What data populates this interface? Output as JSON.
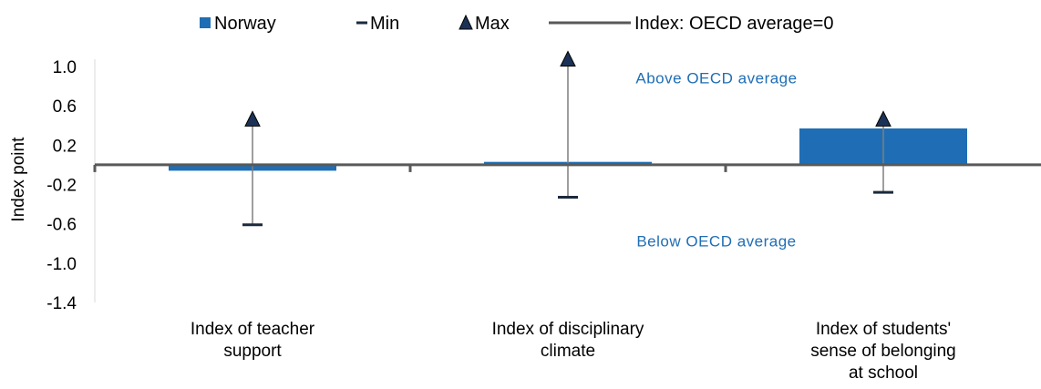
{
  "chart_data": {
    "type": "bar",
    "categories": [
      [
        "Index of teacher",
        "support"
      ],
      [
        "Index of disciplinary",
        "climate"
      ],
      [
        "Index of students'",
        "sense of belonging",
        "at school"
      ]
    ],
    "series": [
      {
        "name": "Norway",
        "type": "bar",
        "values": [
          -0.06,
          0.03,
          0.37
        ],
        "color": "#1F6EB5"
      },
      {
        "name": "Min",
        "type": "marker",
        "values": [
          -0.61,
          -0.33,
          -0.28
        ],
        "color": "#1B2A3D"
      },
      {
        "name": "Max",
        "type": "marker",
        "values": [
          0.45,
          1.06,
          0.45
        ],
        "color": "#1B2A3D"
      }
    ],
    "reference_line": {
      "label": "Index: OECD average=0",
      "value": 0,
      "color": "#595959"
    },
    "ylabel": "Index point",
    "ylim": [
      -1.4,
      1.1
    ],
    "yticks": [
      "1.0",
      "0.6",
      "0.2",
      "-0.2",
      "-0.6",
      "-1.0",
      "-1.4"
    ],
    "ytick_values": [
      1.0,
      0.6,
      0.2,
      -0.2,
      -0.6,
      -1.0,
      -1.4
    ],
    "annotations": {
      "above": "Above OECD average",
      "below": "Below OECD average",
      "color": "#1F6EB5"
    },
    "legend": [
      {
        "label": "Norway",
        "symbol": "square"
      },
      {
        "label": "Min",
        "symbol": "dash"
      },
      {
        "label": "Max",
        "symbol": "triangle"
      },
      {
        "label": "Index: OECD average=0",
        "symbol": "line"
      }
    ],
    "legend_position": "top",
    "grid": false
  }
}
